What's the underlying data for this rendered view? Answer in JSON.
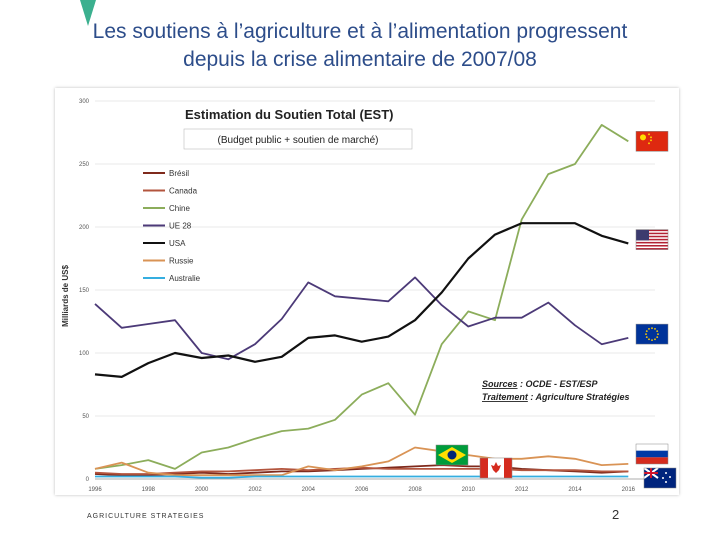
{
  "slide": {
    "title_line1": "Les soutiens à l’agriculture et à l’alimentation progressent",
    "title_line2": "depuis la crise alimentaire de 2007/08",
    "footer_brand": "AGRICULTURE STRATEGIES",
    "page_number": "2"
  },
  "chart_data": {
    "type": "line",
    "title": "Estimation du Soutien Total (EST)",
    "subtitle": "(Budget public + soutien de marché)",
    "ylabel": "Milliards de US$",
    "xlabel": "",
    "xlim": [
      1996,
      2017
    ],
    "ylim": [
      0,
      300
    ],
    "yticks": [
      0,
      50,
      100,
      150,
      200,
      250,
      300
    ],
    "xticks": [
      1996,
      1998,
      2000,
      2002,
      2004,
      2006,
      2008,
      2010,
      2012,
      2014,
      2016
    ],
    "x": [
      1996,
      1997,
      1998,
      1999,
      2000,
      2001,
      2002,
      2003,
      2004,
      2005,
      2006,
      2007,
      2008,
      2009,
      2010,
      2011,
      2012,
      2013,
      2014,
      2015,
      2016
    ],
    "legend_position": "left",
    "series": [
      {
        "name": "Brésil",
        "color": "#7f2a1c",
        "values": [
          4,
          3,
          3,
          4,
          5,
          4,
          5,
          6,
          6,
          7,
          8,
          9,
          10,
          11,
          10,
          10,
          8,
          7,
          6,
          5,
          6
        ]
      },
      {
        "name": "Canada",
        "color": "#b3553e",
        "values": [
          5,
          4,
          4,
          5,
          6,
          6,
          7,
          8,
          7,
          8,
          9,
          8,
          8,
          8,
          8,
          8,
          7,
          7,
          7,
          6,
          6
        ]
      },
      {
        "name": "Chine",
        "color": "#8cad5b",
        "values": [
          8,
          11,
          15,
          8,
          21,
          25,
          32,
          38,
          40,
          47,
          67,
          76,
          51,
          107,
          133,
          126,
          206,
          242,
          250,
          281,
          268
        ]
      },
      {
        "name": "UE 28",
        "color": "#4c3a78",
        "values": [
          139,
          120,
          123,
          126,
          100,
          95,
          107,
          127,
          156,
          145,
          143,
          141,
          160,
          138,
          121,
          128,
          128,
          140,
          122,
          107,
          112
        ]
      },
      {
        "name": "USA",
        "color": "#111111",
        "values": [
          83,
          81,
          92,
          100,
          96,
          98,
          93,
          97,
          112,
          114,
          109,
          113,
          126,
          148,
          175,
          194,
          203,
          203,
          203,
          193,
          187
        ]
      },
      {
        "name": "Russie",
        "color": "#d99355",
        "values": [
          8,
          13,
          5,
          3,
          3,
          3,
          3,
          3,
          10,
          7,
          10,
          14,
          25,
          22,
          19,
          16,
          16,
          18,
          16,
          11,
          12
        ]
      },
      {
        "name": "Australie",
        "color": "#35aee0",
        "values": [
          2,
          2,
          2,
          2,
          1,
          1,
          2,
          2,
          2,
          2,
          2,
          2,
          2,
          2,
          2,
          2,
          2,
          2,
          2,
          2,
          2
        ]
      }
    ],
    "source_label": "Sources",
    "source_text": " : OCDE - EST/ESP",
    "treatment_label": "Traitement",
    "treatment_text": " : Agriculture Stratégies",
    "flags": [
      {
        "country": "china",
        "value": 268
      },
      {
        "country": "usa",
        "value": 190
      },
      {
        "country": "eu",
        "value": 115
      },
      {
        "country": "brazil",
        "value": 15
      },
      {
        "country": "canada",
        "value": 8
      },
      {
        "country": "russia",
        "value": 13
      },
      {
        "country": "australia",
        "value": 0
      }
    ]
  }
}
